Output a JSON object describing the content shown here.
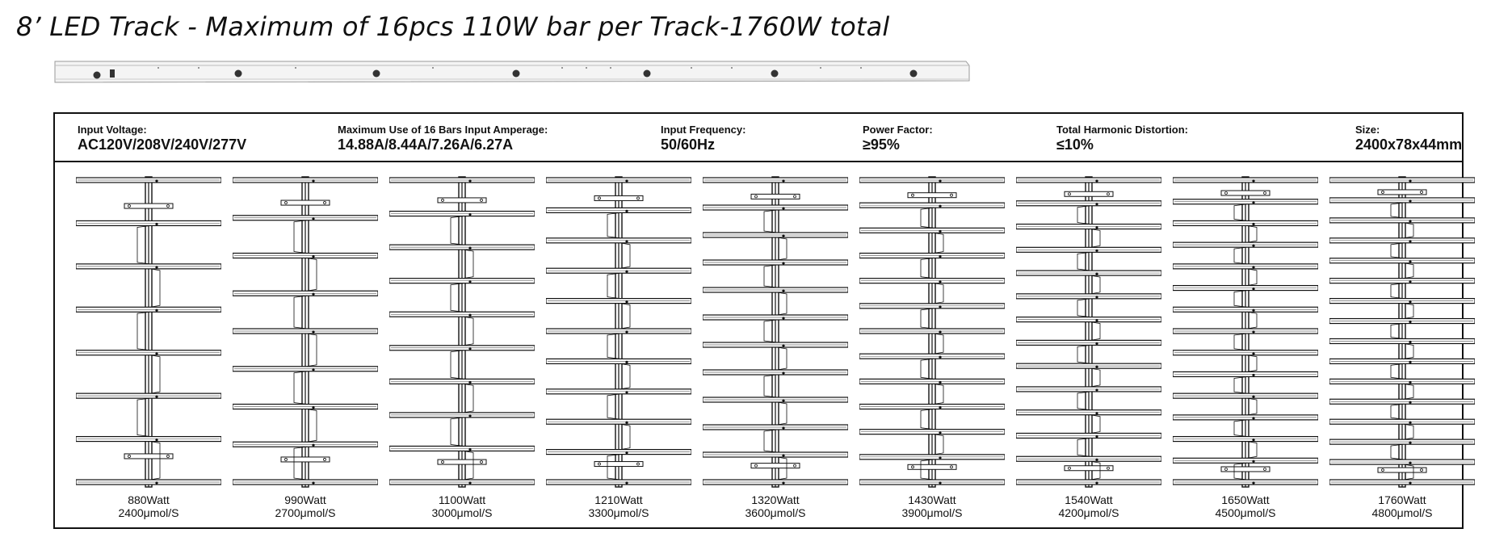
{
  "title": "8’ LED Track - Maximum of 16pcs 110W bar per Track-1760W total",
  "specs": [
    {
      "label": "Input Voltage:",
      "value": "AC120V/208V/240V/277V"
    },
    {
      "label": "Maximum Use of 16 Bars Input Amperage:",
      "value": "14.88A/8.44A/7.26A/6.27A"
    },
    {
      "label": "Input Frequency:",
      "value": "50/60Hz"
    },
    {
      "label": "Power Factor:",
      "value": "≥95%"
    },
    {
      "label": "Total Harmonic Distortion:",
      "value": "≤10%"
    },
    {
      "label": "Size:",
      "value": "2400x78x44mm"
    }
  ],
  "configs": [
    {
      "bars": 8,
      "watt": "880Watt",
      "ppf": "2400μmol/S"
    },
    {
      "bars": 9,
      "watt": "990Watt",
      "ppf": "2700μmol/S"
    },
    {
      "bars": 10,
      "watt": "1100Watt",
      "ppf": "3000μmol/S"
    },
    {
      "bars": 11,
      "watt": "1210Watt",
      "ppf": "3300μmol/S"
    },
    {
      "bars": 12,
      "watt": "1320Watt",
      "ppf": "3600μmol/S"
    },
    {
      "bars": 13,
      "watt": "1430Watt",
      "ppf": "3900μmol/S"
    },
    {
      "bars": 14,
      "watt": "1540Watt",
      "ppf": "4200μmol/S"
    },
    {
      "bars": 15,
      "watt": "1650Watt",
      "ppf": "4500μmol/S"
    },
    {
      "bars": 16,
      "watt": "1760Watt",
      "ppf": "4800μmol/S"
    }
  ]
}
